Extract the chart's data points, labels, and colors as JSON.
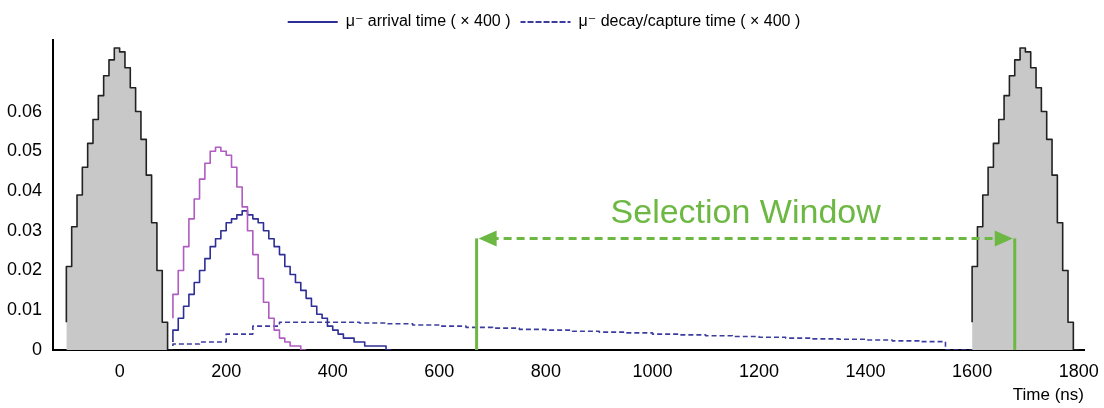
{
  "chart_data": {
    "type": "step",
    "xlabel": "Time (ns)",
    "xlim": [
      -125,
      1810
    ],
    "ylim": [
      0,
      0.078
    ],
    "xticks": [
      0,
      200,
      400,
      600,
      800,
      1000,
      1200,
      1400,
      1600,
      1800
    ],
    "yticks": [
      0,
      0.01,
      0.02,
      0.03,
      0.04,
      0.05,
      0.06
    ],
    "grid": false,
    "legend": "top",
    "series": [
      {
        "type": "area",
        "color": "#c8c8c8",
        "x": [
          -100,
          -90,
          -80,
          -70,
          -60,
          -50,
          -40,
          -30,
          -20,
          -10,
          0,
          10,
          20,
          30,
          40,
          50,
          60,
          70,
          80,
          90,
          100
        ],
        "values": [
          0.007,
          0.021,
          0.031,
          0.039,
          0.046,
          0.052,
          0.058,
          0.064,
          0.069,
          0.073,
          0.076,
          0.075,
          0.071,
          0.066,
          0.06,
          0.053,
          0.044,
          0.032,
          0.02,
          0.007,
          0
        ]
      },
      {
        "type": "area",
        "color": "#c8c8c8",
        "x": [
          1600,
          1610,
          1620,
          1630,
          1640,
          1650,
          1660,
          1670,
          1680,
          1690,
          1700,
          1710,
          1720,
          1730,
          1740,
          1750,
          1760,
          1770,
          1780,
          1790,
          1800
        ],
        "values": [
          0.007,
          0.021,
          0.031,
          0.039,
          0.046,
          0.052,
          0.058,
          0.064,
          0.069,
          0.073,
          0.076,
          0.075,
          0.071,
          0.066,
          0.06,
          0.053,
          0.044,
          0.032,
          0.02,
          0.007,
          0
        ]
      },
      {
        "color": "#b05cc0",
        "x": [
          100,
          110,
          120,
          130,
          140,
          150,
          160,
          170,
          180,
          190,
          200,
          210,
          220,
          230,
          240,
          250,
          260,
          270,
          280,
          290,
          300,
          310,
          320,
          330,
          340,
          350
        ],
        "values": [
          0.008,
          0.014,
          0.02,
          0.026,
          0.033,
          0.038,
          0.043,
          0.047,
          0.05,
          0.051,
          0.05,
          0.049,
          0.046,
          0.041,
          0.036,
          0.03,
          0.024,
          0.018,
          0.012,
          0.008,
          0.005,
          0.003,
          0.002,
          0.001,
          0.001,
          0
        ]
      },
      {
        "name": "μ⁻ arrival time ( × 400 )",
        "color": "#2e2e96",
        "x": [
          100,
          110,
          120,
          130,
          140,
          150,
          160,
          170,
          180,
          190,
          200,
          210,
          220,
          230,
          240,
          250,
          260,
          270,
          280,
          290,
          300,
          310,
          320,
          330,
          340,
          350,
          360,
          370,
          380,
          390,
          400,
          410,
          420,
          430,
          440,
          450,
          460,
          470,
          480,
          490,
          500,
          510
        ],
        "values": [
          0.002,
          0.005,
          0.008,
          0.011,
          0.014,
          0.017,
          0.02,
          0.023,
          0.026,
          0.028,
          0.03,
          0.032,
          0.033,
          0.034,
          0.035,
          0.034,
          0.033,
          0.032,
          0.03,
          0.028,
          0.026,
          0.024,
          0.021,
          0.019,
          0.017,
          0.015,
          0.013,
          0.011,
          0.009,
          0.008,
          0.006,
          0.005,
          0.004,
          0.003,
          0.003,
          0.002,
          0.002,
          0.001,
          0.001,
          0.001,
          0.001,
          0
        ]
      },
      {
        "name": "μ⁻ decay/capture time ( × 400 )",
        "color": "#3c3ca0",
        "line_style": "dashed",
        "x": [
          100,
          150,
          200,
          250,
          300,
          350,
          400,
          450,
          500,
          550,
          600,
          650,
          700,
          750,
          800,
          850,
          900,
          950,
          1000,
          1050,
          1100,
          1150,
          1200,
          1250,
          1300,
          1350,
          1400,
          1450,
          1500,
          1550,
          1600
        ],
        "values": [
          0.001,
          0.0015,
          0.002,
          0.004,
          0.006,
          0.007,
          0.007,
          0.007,
          0.0068,
          0.0066,
          0.0063,
          0.006,
          0.0057,
          0.0055,
          0.0052,
          0.005,
          0.0047,
          0.0045,
          0.0043,
          0.004,
          0.0038,
          0.0036,
          0.0034,
          0.0032,
          0.003,
          0.0028,
          0.0027,
          0.0025,
          0.0023,
          0.0021,
          0
        ]
      }
    ],
    "ref_lines": [
      {
        "axis": "x",
        "value": 670,
        "color": "#6cb843"
      },
      {
        "axis": "x",
        "value": 1680,
        "color": "#6cb843"
      }
    ],
    "annotations": [
      "Selection Window"
    ]
  }
}
